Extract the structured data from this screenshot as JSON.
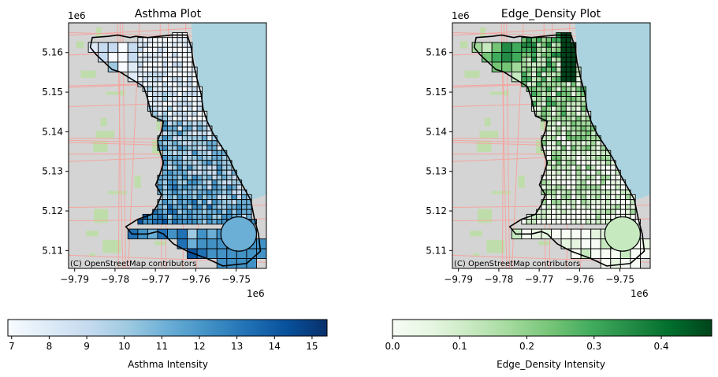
{
  "chart_data": [
    {
      "type": "choropleth-map",
      "title": "Asthma Plot",
      "attribution": "(C) OpenStreetMap contributors",
      "x_offset_label": "1e6",
      "y_offset_label": "1e6",
      "x_ticks": [
        "−9.79",
        "−9.78",
        "−9.77",
        "−9.76",
        "−9.75"
      ],
      "x_tick_values": [
        -9.79,
        -9.78,
        -9.77,
        -9.76,
        -9.75
      ],
      "y_ticks": [
        "5.11",
        "5.12",
        "5.13",
        "5.14",
        "5.15",
        "5.16"
      ],
      "y_tick_values": [
        5.11,
        5.12,
        5.13,
        5.14,
        5.15,
        5.16
      ],
      "xlim": [
        -9.7915,
        -9.7425
      ],
      "ylim": [
        5.1055,
        5.1675
      ],
      "colormap": "Blues",
      "colors": [
        "#f7fbff",
        "#deebf7",
        "#c6dbef",
        "#9ecae1",
        "#6baed6",
        "#4292c6",
        "#2171b5",
        "#08519c",
        "#08306b"
      ],
      "colorbar_label": "Asthma Intensity",
      "colorbar_range": [
        6.9,
        15.4
      ],
      "colorbar_ticks": [
        "7",
        "8",
        "9",
        "10",
        "11",
        "12",
        "13",
        "14",
        "15"
      ],
      "colorbar_tick_values": [
        7,
        8,
        9,
        10,
        11,
        12,
        13,
        14,
        15
      ]
    },
    {
      "type": "choropleth-map",
      "title": "Edge_Density Plot",
      "attribution": "(C) OpenStreetMap contributors",
      "x_offset_label": "1e6",
      "y_offset_label": "1e6",
      "x_ticks": [
        "−9.79",
        "−9.78",
        "−9.77",
        "−9.76",
        "−9.75"
      ],
      "x_tick_values": [
        -9.79,
        -9.78,
        -9.77,
        -9.76,
        -9.75
      ],
      "y_ticks": [
        "5.11",
        "5.12",
        "5.13",
        "5.14",
        "5.15",
        "5.16"
      ],
      "y_tick_values": [
        5.11,
        5.12,
        5.13,
        5.14,
        5.15,
        5.16
      ],
      "xlim": [
        -9.7915,
        -9.7425
      ],
      "ylim": [
        5.1055,
        5.1675
      ],
      "colormap": "Greens",
      "colors": [
        "#f7fcf5",
        "#e5f5e0",
        "#c7e9c0",
        "#a1d99b",
        "#74c476",
        "#41ab5d",
        "#238b45",
        "#006d2c",
        "#00441b"
      ],
      "colorbar_label": "Edge_Density Intensity",
      "colorbar_range": [
        0.0,
        0.475
      ],
      "colorbar_ticks": [
        "0.0",
        "0.1",
        "0.2",
        "0.3",
        "0.4"
      ],
      "colorbar_tick_values": [
        0.0,
        0.1,
        0.2,
        0.3,
        0.4
      ]
    }
  ],
  "map_colors": {
    "land": "#d4d4d4",
    "water": "#aad3df",
    "park": "#b9dea0",
    "road": "#f3a6a0",
    "outline": "#000000"
  }
}
